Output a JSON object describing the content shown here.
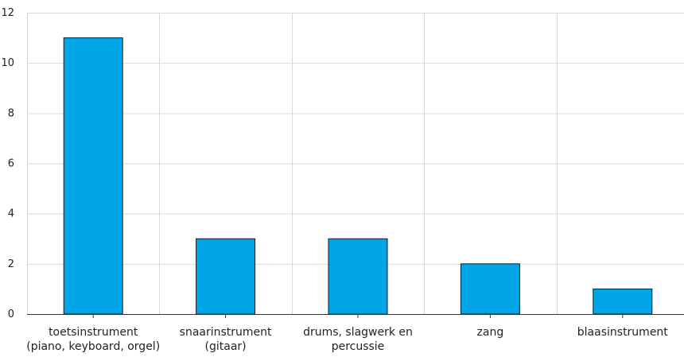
{
  "chart_data": {
    "type": "bar",
    "categories": [
      [
        "toetsinstrument",
        "(piano, keyboard, orgel)"
      ],
      [
        "snaarinstrument",
        "(gitaar)"
      ],
      [
        "drums, slagwerk en",
        "percussie"
      ],
      [
        "zang"
      ],
      [
        "blaasinstrument"
      ]
    ],
    "values": [
      11,
      3,
      3,
      2,
      1
    ],
    "ylim": [
      0,
      12
    ],
    "yticks": [
      0,
      2,
      4,
      6,
      8,
      10,
      12
    ],
    "grid": true,
    "colors": {
      "bar": "#00a6e8",
      "bar_edge": "#1a1a1a",
      "grid": "#d9d9d9",
      "axis": "#333333"
    }
  }
}
